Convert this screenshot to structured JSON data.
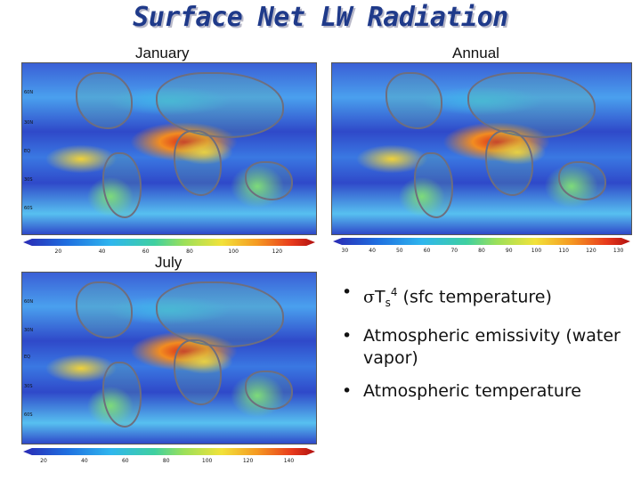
{
  "slide": {
    "title": "Surface Net LW Radiation"
  },
  "panels": [
    {
      "label": "January",
      "lat_labels": [
        "60N",
        "30N",
        "EQ",
        "30S",
        "60S"
      ],
      "colorbar_ticks": [
        "20",
        "40",
        "60",
        "80",
        "100",
        "120"
      ]
    },
    {
      "label": "Annual",
      "lat_labels": [],
      "colorbar_ticks": [
        "30",
        "40",
        "50",
        "60",
        "70",
        "80",
        "90",
        "100",
        "110",
        "120",
        "130"
      ]
    },
    {
      "label": "July",
      "lat_labels": [
        "60N",
        "30N",
        "EQ",
        "30S",
        "60S"
      ],
      "colorbar_ticks": [
        "20",
        "40",
        "60",
        "80",
        "100",
        "120",
        "140"
      ]
    }
  ],
  "bullets": {
    "item1": {
      "sigma": "σ",
      "t": "T",
      "sub": "s",
      "sup": "4",
      "rest": " (sfc temperature)"
    },
    "item2": "Atmospheric emissivity (water vapor)",
    "item3": "Atmospheric temperature"
  }
}
